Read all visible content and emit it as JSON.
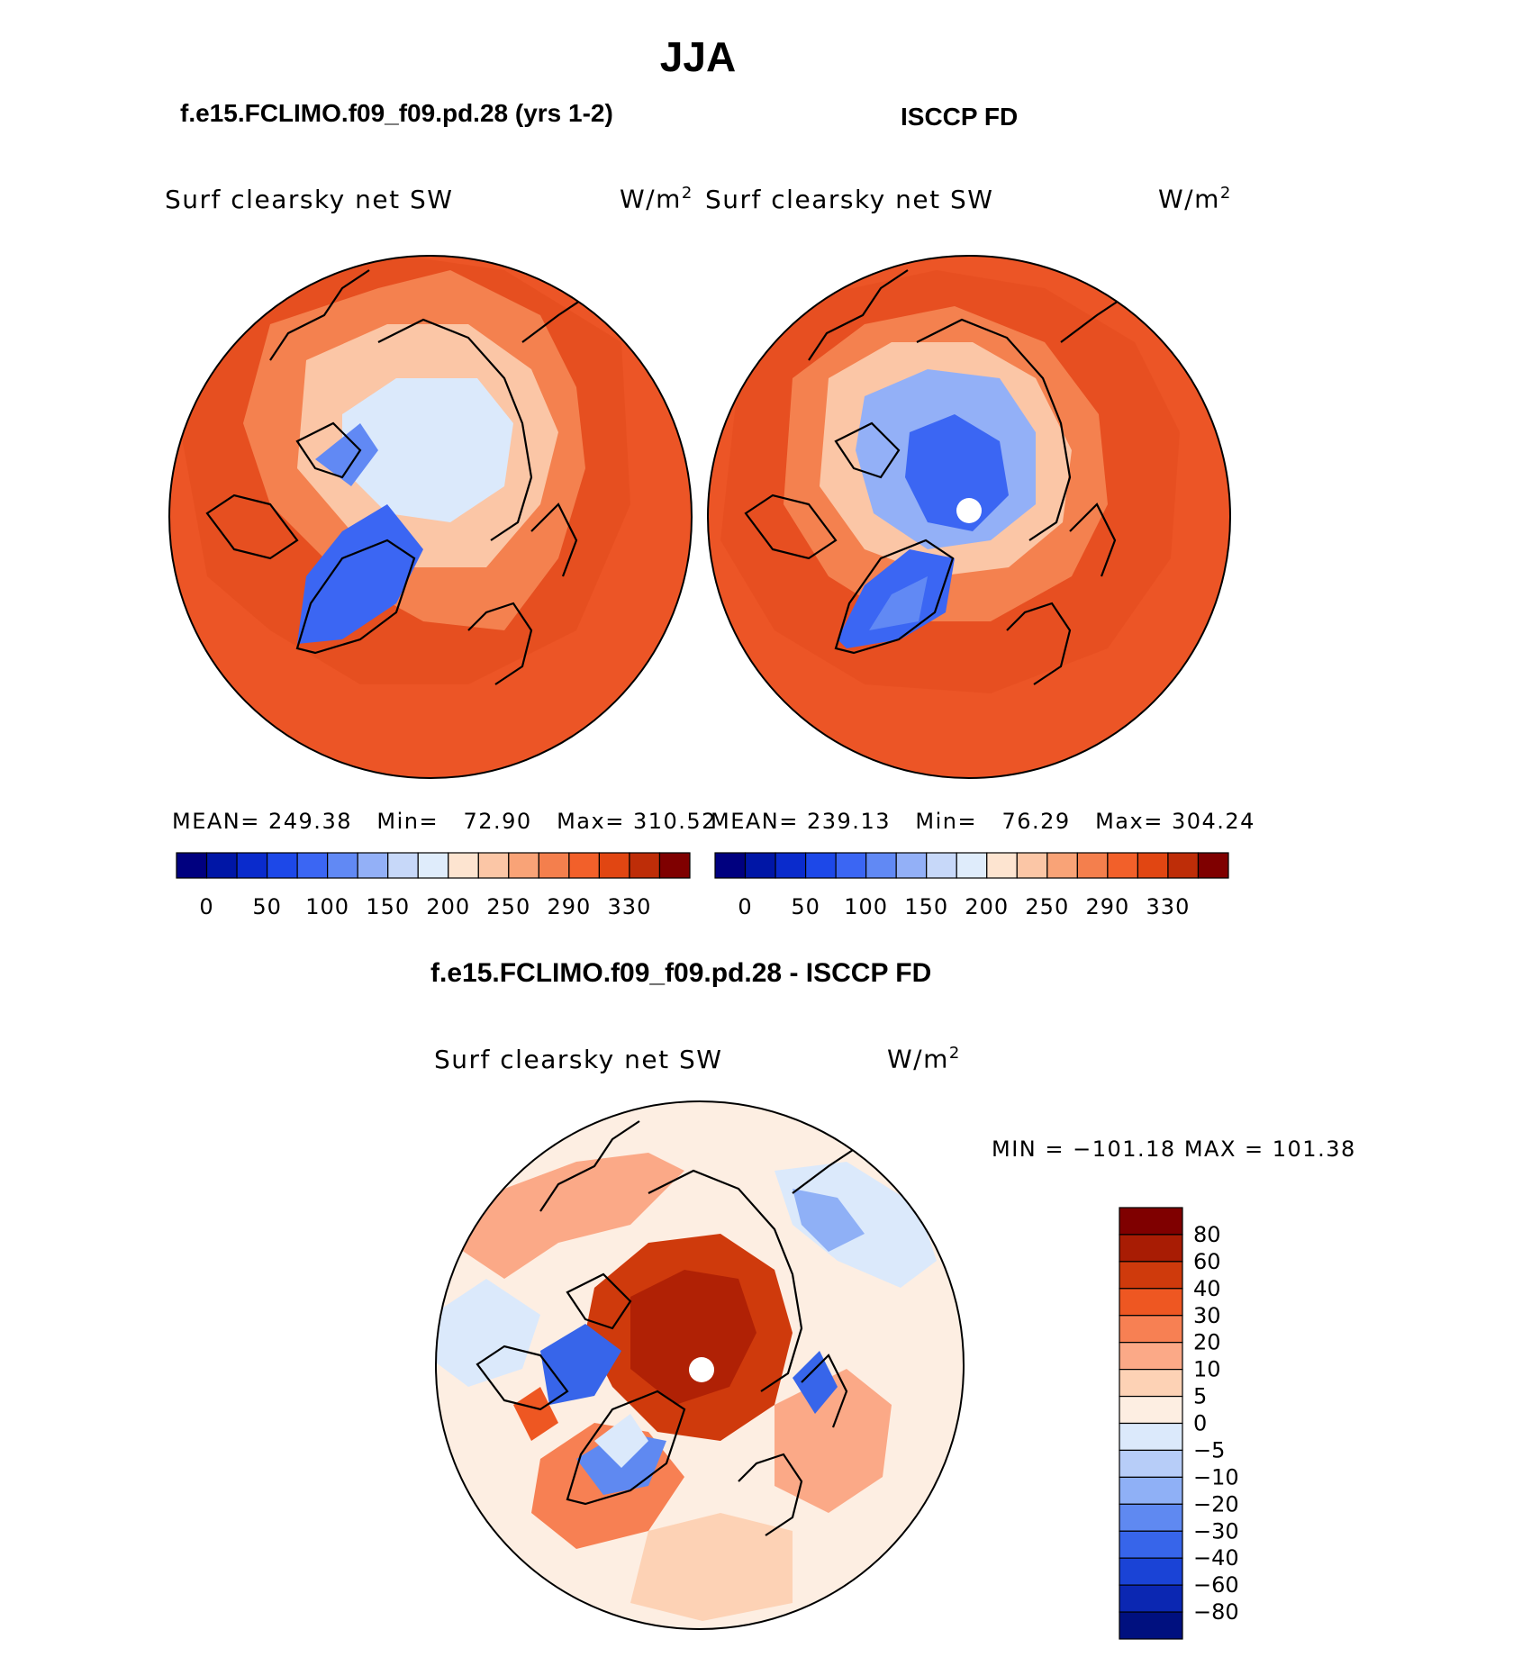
{
  "page": {
    "title": "JJA"
  },
  "panels": [
    {
      "case": "f.e15.FCLIMO.f09_f09.pd.28 (yrs 1-2)",
      "variable": "Surf clearsky net SW",
      "units": "W/m",
      "units_sup": "2",
      "stats": {
        "mean_label": "MEAN=",
        "mean": "249.38",
        "min_label": "Min=",
        "min": "72.90",
        "max_label": "Max=",
        "max": "310.52"
      }
    },
    {
      "case": "ISCCP FD",
      "variable": "Surf clearsky net SW",
      "units": "W/m",
      "units_sup": "2",
      "stats": {
        "mean_label": "MEAN=",
        "mean": "239.13",
        "min_label": "Min=",
        "min": "76.29",
        "max_label": "Max=",
        "max": "304.24"
      }
    }
  ],
  "colorbar_top": {
    "labels": [
      "0",
      "50",
      "100",
      "150",
      "200",
      "250",
      "290",
      "330"
    ],
    "colors": [
      "#00007f",
      "#0016a6",
      "#0a2bcc",
      "#1d48e8",
      "#3b66f3",
      "#6189f4",
      "#93b0f7",
      "#c7d8f9",
      "#dfecfb",
      "#fde4d0",
      "#fbc6a6",
      "#f9a377",
      "#f47f4d",
      "#f2602a",
      "#e14612",
      "#be2d08",
      "#7f0000"
    ]
  },
  "diff_panel": {
    "title": "f.e15.FCLIMO.f09_f09.pd.28 - ISCCP FD",
    "variable": "Surf clearsky net SW",
    "units": "W/m",
    "units_sup": "2",
    "minmax": "MIN = −101.18 MAX = 101.38"
  },
  "colorbar_diff": {
    "labels": [
      "80",
      "60",
      "40",
      "30",
      "20",
      "10",
      "5",
      "0",
      "−5",
      "−10",
      "−20",
      "−30",
      "−40",
      "−60",
      "−80"
    ],
    "colors": [
      "#7f0000",
      "#a81c04",
      "#cf3a0c",
      "#ee5722",
      "#f78053",
      "#fba987",
      "#fdd2b5",
      "#fdeee2",
      "#dbe9fb",
      "#b7cdf8",
      "#8fb0f6",
      "#5f89f1",
      "#3765ea",
      "#1a43d6",
      "#0b27b2",
      "#00107f"
    ]
  },
  "colors": {
    "ocean_orange": "#ec5526",
    "ocean_dark": "#d93f14",
    "land_light": "#fbc6a6",
    "ice_blue": "#3b66f3",
    "pale_blue": "#dbe9fb",
    "coast": "#000000"
  }
}
